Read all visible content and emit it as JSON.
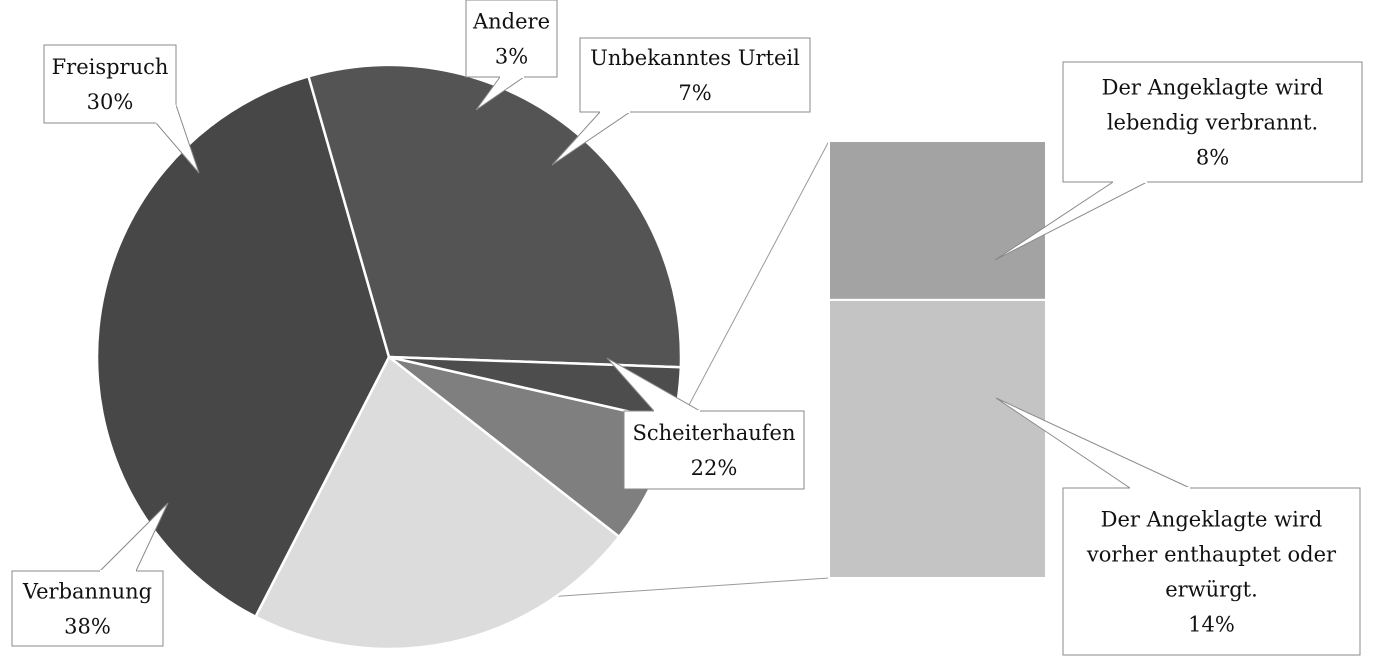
{
  "chart_data": {
    "type": "pie",
    "subtype": "bar-of-pie",
    "title": "",
    "slices": [
      {
        "label": "Unbekanntes Urteil",
        "value": 7,
        "value_label": "7%",
        "color": "#7f7f7f"
      },
      {
        "label": "Scheiterhaufen",
        "value": 22,
        "value_label": "22%",
        "color": "#dcdcdc"
      },
      {
        "label": "Verbannung",
        "value": 38,
        "value_label": "38%",
        "color": "#474747"
      },
      {
        "label": "Freispruch",
        "value": 30,
        "value_label": "30%",
        "color": "#545454"
      },
      {
        "label": "Andere",
        "value": 3,
        "value_label": "3%",
        "color": "#4d4d4d"
      }
    ],
    "breakdown_of": "Scheiterhaufen",
    "breakdown": [
      {
        "label": "Der Angeklagte wird lebendig verbrannt.",
        "value": 8,
        "value_label": "8%",
        "color": "#a3a3a3"
      },
      {
        "label": "Der Angeklagte wird vorher enthauptet oder erwürgt.",
        "value": 14,
        "value_label": "14%",
        "color": "#c4c4c4"
      }
    ],
    "legend": "none",
    "grid": false
  }
}
